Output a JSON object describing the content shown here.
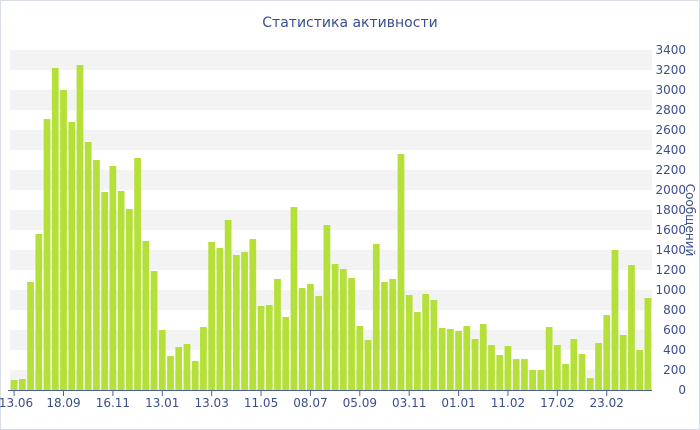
{
  "chart_data": {
    "type": "bar",
    "title": "Статистика активности",
    "xlabel": "",
    "ylabel": "Сообщений",
    "ylim": [
      0,
      3400
    ],
    "y_ticks": [
      0,
      200,
      400,
      600,
      800,
      1000,
      1200,
      1400,
      1600,
      1800,
      2000,
      2200,
      2400,
      2600,
      2800,
      3000,
      3200,
      3400
    ],
    "y_axis_side": "right",
    "grid": "horizontal alternating bands",
    "bar_color": "#b5e03a",
    "band_color": "#f3f3f3",
    "x_tick_labels": [
      "13.06",
      "18.09",
      "16.11",
      "13.01",
      "13.03",
      "11.05",
      "08.07",
      "05.09",
      "03.11",
      "01.01",
      "11.02",
      "17.02",
      "23.02"
    ],
    "x_tick_positions": [
      0,
      6,
      12,
      18,
      24,
      30,
      36,
      42,
      48,
      54,
      60,
      66,
      72
    ],
    "values": [
      100,
      110,
      1080,
      1560,
      2710,
      3220,
      3000,
      2680,
      3250,
      2480,
      2300,
      1980,
      2240,
      1990,
      1810,
      2320,
      1490,
      1190,
      600,
      340,
      430,
      460,
      290,
      630,
      1480,
      1420,
      1700,
      1350,
      1380,
      1510,
      840,
      850,
      1110,
      730,
      1830,
      1020,
      1060,
      940,
      1650,
      1260,
      1210,
      1120,
      640,
      500,
      1460,
      1080,
      1110,
      2360,
      950,
      780,
      960,
      900,
      620,
      610,
      590,
      640,
      510,
      660,
      450,
      350,
      440,
      310,
      310,
      200,
      200,
      630,
      450,
      260,
      510,
      360,
      120,
      470,
      750,
      1400,
      550,
      1250,
      400,
      920
    ]
  }
}
